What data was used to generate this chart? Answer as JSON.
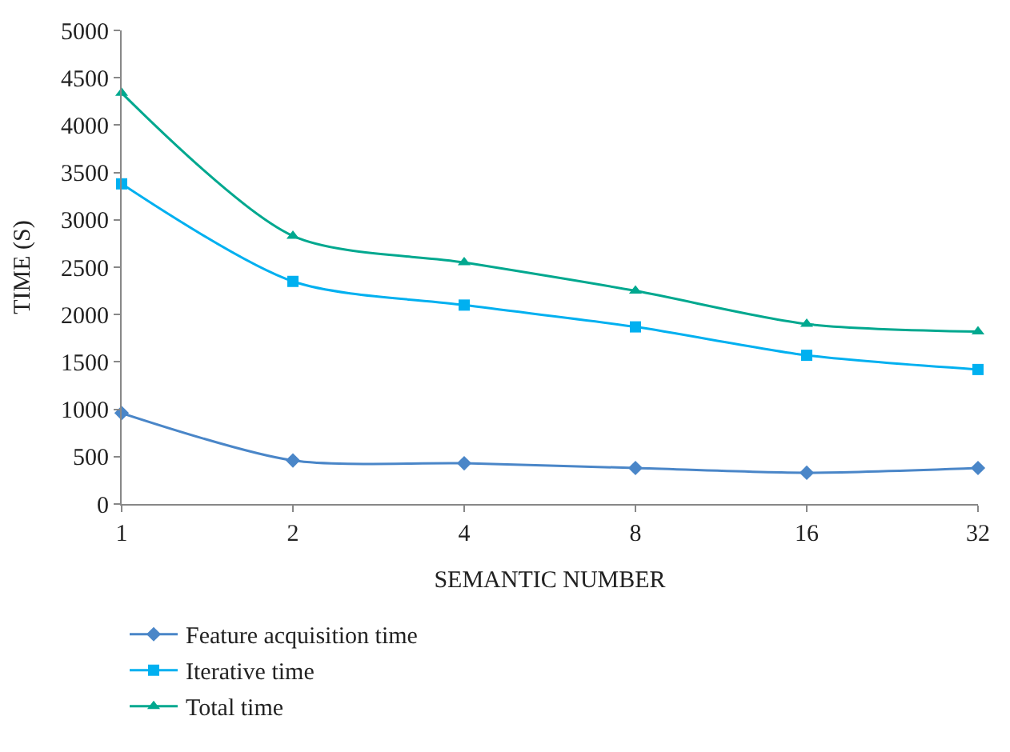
{
  "chart_data": {
    "type": "line",
    "xlabel": "SEMANTIC NUMBER",
    "ylabel": "TIME (S)",
    "categories": [
      "1",
      "2",
      "4",
      "8",
      "16",
      "32"
    ],
    "series": [
      {
        "name": "Feature acquisition time",
        "color": "#4a86c8",
        "marker": "diamond",
        "values": [
          960,
          460,
          430,
          380,
          330,
          380
        ]
      },
      {
        "name": "Iterative time",
        "color": "#00b0f0",
        "marker": "square",
        "values": [
          3380,
          2350,
          2100,
          1870,
          1570,
          1420
        ]
      },
      {
        "name": "Total time",
        "color": "#00a88f",
        "marker": "triangle",
        "values": [
          4340,
          2830,
          2550,
          2250,
          1900,
          1820
        ]
      }
    ],
    "ylim": [
      0,
      5000
    ],
    "yticks": [
      0,
      500,
      1000,
      1500,
      2000,
      2500,
      3000,
      3500,
      4000,
      4500,
      5000
    ],
    "legend": "bottom",
    "line_style": "solid"
  }
}
